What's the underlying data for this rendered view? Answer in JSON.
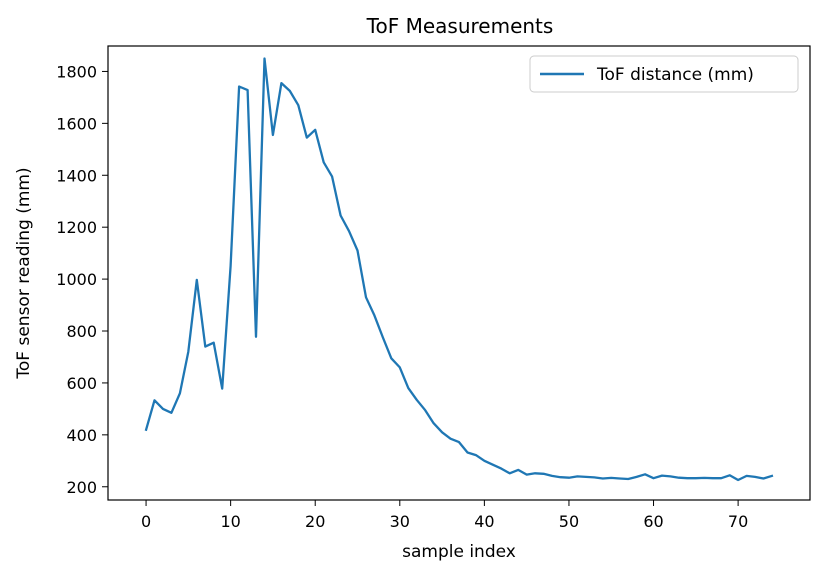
{
  "chart_data": {
    "type": "line",
    "title": "ToF Measurements",
    "xlabel": "sample index",
    "ylabel": "ToF sensor reading (mm)",
    "xlim": [
      -4.5,
      78.5
    ],
    "ylim": [
      149,
      1898
    ],
    "xticks": [
      0,
      10,
      20,
      30,
      40,
      50,
      60,
      70
    ],
    "yticks": [
      200,
      400,
      600,
      800,
      1000,
      1200,
      1400,
      1600,
      1800
    ],
    "grid": false,
    "legend_position": "top-right",
    "series": [
      {
        "name": "ToF distance (mm)",
        "color": "#1f77b4",
        "x": [
          0,
          1,
          2,
          3,
          4,
          5,
          6,
          7,
          8,
          9,
          10,
          11,
          12,
          13,
          14,
          15,
          16,
          17,
          18,
          19,
          20,
          21,
          22,
          23,
          24,
          25,
          26,
          27,
          28,
          29,
          30,
          31,
          32,
          33,
          34,
          35,
          36,
          37,
          38,
          39,
          40,
          41,
          42,
          43,
          44,
          45,
          46,
          47,
          48,
          49,
          50,
          51,
          52,
          53,
          54,
          55,
          56,
          57,
          58,
          59,
          60,
          61,
          62,
          63,
          64,
          65,
          66,
          67,
          68,
          69,
          70,
          71,
          72,
          73,
          74
        ],
        "values": [
          420,
          533,
          500,
          485,
          560,
          720,
          997,
          740,
          755,
          578,
          1050,
          1742,
          1728,
          778,
          1850,
          1555,
          1755,
          1725,
          1670,
          1545,
          1575,
          1450,
          1395,
          1245,
          1185,
          1110,
          930,
          860,
          775,
          695,
          660,
          580,
          535,
          495,
          445,
          410,
          385,
          372,
          332,
          322,
          300,
          285,
          270,
          252,
          265,
          247,
          252,
          250,
          242,
          237,
          235,
          240,
          238,
          236,
          232,
          234,
          232,
          230,
          238,
          248,
          233,
          243,
          240,
          235,
          233,
          233,
          234,
          233,
          233,
          244,
          226,
          242,
          238,
          232,
          242
        ]
      }
    ]
  }
}
